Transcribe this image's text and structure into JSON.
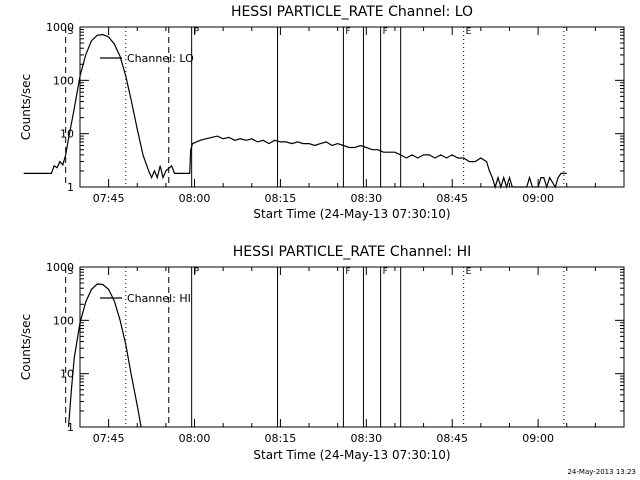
{
  "footer": "24-May-2013 13:23",
  "chart_data": [
    {
      "type": "line",
      "title": "HESSI PARTICLE_RATE Channel: LO",
      "xlabel": "Start Time (24-May-13 07:30:10)",
      "ylabel": "Counts/sec",
      "yscale": "log",
      "ylim": [
        1,
        1000
      ],
      "xlim_min": [
        7.6667,
        9.25
      ],
      "xticks": [
        "07:45",
        "08:00",
        "08:15",
        "08:30",
        "08:45",
        "09:00"
      ],
      "yticks": [
        "1",
        "10",
        "100",
        "1000"
      ],
      "legend": "Channel: LO",
      "legend_placement": "top-left",
      "markers": [
        {
          "label": "S",
          "time": "07:37:30",
          "style": "dashed"
        },
        {
          "label": "",
          "time": "07:48:00",
          "style": "dotted"
        },
        {
          "label": "",
          "time": "07:55:30",
          "style": "dashed"
        },
        {
          "label": "P",
          "time": "07:59:30",
          "style": "solid"
        },
        {
          "label": "",
          "time": "08:14:30",
          "style": "solid"
        },
        {
          "label": "F",
          "time": "08:26:00",
          "style": "solid"
        },
        {
          "label": "",
          "time": "08:29:30",
          "style": "solid"
        },
        {
          "label": "F",
          "time": "08:32:30",
          "style": "solid"
        },
        {
          "label": "",
          "time": "08:36:00",
          "style": "solid"
        },
        {
          "label": "E",
          "time": "08:47:00",
          "style": "dotted"
        },
        {
          "label": "",
          "time": "09:04:30",
          "style": "dotted"
        }
      ],
      "series": [
        {
          "name": "Channel: LO",
          "points": [
            [
              "07:30:10",
              1.8
            ],
            [
              "07:35:00",
              1.8
            ],
            [
              "07:35:30",
              2.5
            ],
            [
              "07:36:00",
              2.3
            ],
            [
              "07:36:30",
              3
            ],
            [
              "07:37:00",
              2.6
            ],
            [
              "07:37:30",
              4
            ],
            [
              "07:38:00",
              8
            ],
            [
              "07:39:00",
              30
            ],
            [
              "07:40:00",
              120
            ],
            [
              "07:41:00",
              300
            ],
            [
              "07:42:00",
              550
            ],
            [
              "07:43:00",
              700
            ],
            [
              "07:44:00",
              720
            ],
            [
              "07:45:00",
              650
            ],
            [
              "07:46:00",
              480
            ],
            [
              "07:47:00",
              280
            ],
            [
              "07:48:00",
              120
            ],
            [
              "07:49:00",
              40
            ],
            [
              "07:50:00",
              12
            ],
            [
              "07:51:00",
              4
            ],
            [
              "07:52:00",
              2
            ],
            [
              "07:52:30",
              1.5
            ],
            [
              "07:53:00",
              2
            ],
            [
              "07:53:30",
              1.5
            ],
            [
              "07:54:00",
              2.5
            ],
            [
              "07:54:30",
              1.5
            ],
            [
              "07:55:00",
              2
            ],
            [
              "07:56:00",
              2.5
            ],
            [
              "07:56:30",
              1.8
            ],
            [
              "07:59:10",
              1.8
            ],
            [
              "07:59:20",
              5
            ],
            [
              "07:59:40",
              6.5
            ],
            [
              "08:01:00",
              7.5
            ],
            [
              "08:02:00",
              8
            ],
            [
              "08:03:00",
              8.5
            ],
            [
              "08:04:00",
              9
            ],
            [
              "08:05:00",
              8
            ],
            [
              "08:06:00",
              8.5
            ],
            [
              "08:07:00",
              7.5
            ],
            [
              "08:08:00",
              8
            ],
            [
              "08:09:00",
              7.5
            ],
            [
              "08:10:00",
              8
            ],
            [
              "08:11:00",
              7
            ],
            [
              "08:12:00",
              7.5
            ],
            [
              "08:13:00",
              6.5
            ],
            [
              "08:14:00",
              7.5
            ],
            [
              "08:15:00",
              7
            ],
            [
              "08:16:00",
              7
            ],
            [
              "08:17:00",
              6.5
            ],
            [
              "08:18:00",
              7
            ],
            [
              "08:19:00",
              6.5
            ],
            [
              "08:20:00",
              6.5
            ],
            [
              "08:21:00",
              6
            ],
            [
              "08:22:00",
              6.5
            ],
            [
              "08:23:00",
              7
            ],
            [
              "08:24:00",
              6
            ],
            [
              "08:25:00",
              6.5
            ],
            [
              "08:26:00",
              6
            ],
            [
              "08:27:00",
              5.5
            ],
            [
              "08:28:00",
              5.5
            ],
            [
              "08:29:00",
              6
            ],
            [
              "08:30:00",
              5.5
            ],
            [
              "08:31:00",
              5
            ],
            [
              "08:32:00",
              5
            ],
            [
              "08:33:00",
              4.5
            ],
            [
              "08:34:00",
              4.5
            ],
            [
              "08:35:00",
              4.5
            ],
            [
              "08:36:00",
              4
            ],
            [
              "08:37:00",
              3.5
            ],
            [
              "08:38:00",
              4
            ],
            [
              "08:39:00",
              3.5
            ],
            [
              "08:40:00",
              4
            ],
            [
              "08:41:00",
              4
            ],
            [
              "08:42:00",
              3.5
            ],
            [
              "08:43:00",
              4
            ],
            [
              "08:44:00",
              3.5
            ],
            [
              "08:45:00",
              4
            ],
            [
              "08:46:00",
              3.5
            ],
            [
              "08:47:00",
              3.5
            ],
            [
              "08:48:00",
              3
            ],
            [
              "08:49:00",
              3
            ],
            [
              "08:50:00",
              3.5
            ],
            [
              "08:51:00",
              3
            ],
            [
              "08:51:30",
              2
            ],
            [
              "08:52:00",
              1.5
            ],
            [
              "08:52:30",
              1
            ],
            [
              "08:53:00",
              1.5
            ],
            [
              "08:53:30",
              1
            ],
            [
              "08:54:00",
              1.5
            ],
            [
              "08:54:30",
              1
            ],
            [
              "08:55:00",
              1.5
            ],
            [
              "08:55:30",
              1
            ],
            [
              "08:56:00",
              1
            ],
            [
              "08:58:00",
              1
            ],
            [
              "08:58:30",
              1.5
            ],
            [
              "08:59:00",
              1
            ],
            [
              "09:00:00",
              1
            ],
            [
              "09:00:30",
              1.5
            ],
            [
              "09:01:00",
              1.5
            ],
            [
              "09:01:30",
              1
            ],
            [
              "09:02:00",
              1.5
            ],
            [
              "09:03:00",
              1
            ],
            [
              "09:03:30",
              1.5
            ],
            [
              "09:04:00",
              1.8
            ],
            [
              "09:05:00",
              1.8
            ]
          ]
        }
      ]
    },
    {
      "type": "line",
      "title": "HESSI PARTICLE_RATE Channel: HI",
      "xlabel": "Start Time (24-May-13 07:30:10)",
      "ylabel": "Counts/sec",
      "yscale": "log",
      "ylim": [
        1,
        1000
      ],
      "xlim_min": [
        7.6667,
        9.25
      ],
      "xticks": [
        "07:45",
        "08:00",
        "08:15",
        "08:30",
        "08:45",
        "09:00"
      ],
      "yticks": [
        "1",
        "10",
        "100",
        "1000"
      ],
      "legend": "Channel: HI",
      "legend_placement": "top-left",
      "markers": [
        {
          "label": "S",
          "time": "07:37:30",
          "style": "dashed"
        },
        {
          "label": "",
          "time": "07:48:00",
          "style": "dotted"
        },
        {
          "label": "",
          "time": "07:55:30",
          "style": "dashed"
        },
        {
          "label": "P",
          "time": "07:59:30",
          "style": "solid"
        },
        {
          "label": "",
          "time": "08:14:30",
          "style": "solid"
        },
        {
          "label": "F",
          "time": "08:26:00",
          "style": "solid"
        },
        {
          "label": "",
          "time": "08:29:30",
          "style": "solid"
        },
        {
          "label": "F",
          "time": "08:32:30",
          "style": "solid"
        },
        {
          "label": "",
          "time": "08:36:00",
          "style": "solid"
        },
        {
          "label": "E",
          "time": "08:47:00",
          "style": "dotted"
        },
        {
          "label": "",
          "time": "09:04:30",
          "style": "dotted"
        }
      ],
      "series": [
        {
          "name": "Channel: HI",
          "points": [
            [
              "07:38:00",
              1
            ],
            [
              "07:38:30",
              5
            ],
            [
              "07:39:00",
              20
            ],
            [
              "07:40:00",
              90
            ],
            [
              "07:41:00",
              220
            ],
            [
              "07:42:00",
              380
            ],
            [
              "07:43:00",
              480
            ],
            [
              "07:44:00",
              470
            ],
            [
              "07:45:00",
              380
            ],
            [
              "07:46:00",
              230
            ],
            [
              "07:47:00",
              100
            ],
            [
              "07:48:00",
              35
            ],
            [
              "07:49:00",
              9
            ],
            [
              "07:50:00",
              2.5
            ],
            [
              "07:50:40",
              1
            ]
          ]
        }
      ]
    }
  ]
}
